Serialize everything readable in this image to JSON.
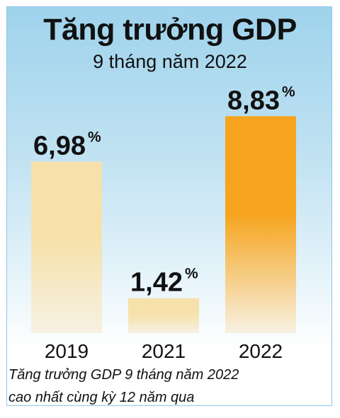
{
  "chart_data": {
    "type": "bar",
    "title": "Tăng trưởng GDP",
    "subtitle": "9 tháng năm 2022",
    "categories": [
      "2019",
      "2021",
      "2022"
    ],
    "values": [
      6.98,
      1.42,
      8.83
    ],
    "value_labels": [
      "6,98",
      "1,42",
      "8,83"
    ],
    "unit": "%",
    "ylim": [
      0,
      9.5
    ],
    "grid": false,
    "colors": {
      "2019": "#f6e1ab",
      "2021": "#f6e1ab",
      "2022": "#f6a41d",
      "bar_fade": "#f7f1e2"
    }
  },
  "caption": {
    "line1": "Tăng trưởng GDP 9 tháng năm 2022",
    "line2": "cao nhất cùng kỳ 12 năm qua"
  }
}
